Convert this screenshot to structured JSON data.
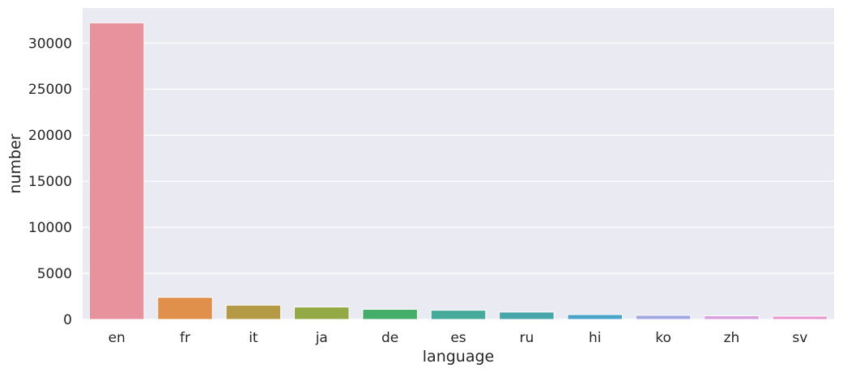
{
  "chart_data": {
    "type": "bar",
    "xlabel": "language",
    "ylabel": "number",
    "categories": [
      "en",
      "fr",
      "it",
      "ja",
      "de",
      "es",
      "ru",
      "hi",
      "ko",
      "zh",
      "sv"
    ],
    "values": [
      32200,
      2400,
      1550,
      1350,
      1100,
      1000,
      800,
      530,
      450,
      390,
      350
    ],
    "colors": [
      "#e8929e",
      "#e0904a",
      "#b59a45",
      "#93a945",
      "#44ad6a",
      "#45aa99",
      "#47a6a9",
      "#4aa5c8",
      "#a3a8e4",
      "#d99de1",
      "#e596cf"
    ],
    "yticks": [
      0,
      5000,
      10000,
      15000,
      20000,
      25000,
      30000
    ],
    "ylim": [
      0,
      33800
    ],
    "grid": true,
    "background": "#eaeaf2"
  }
}
